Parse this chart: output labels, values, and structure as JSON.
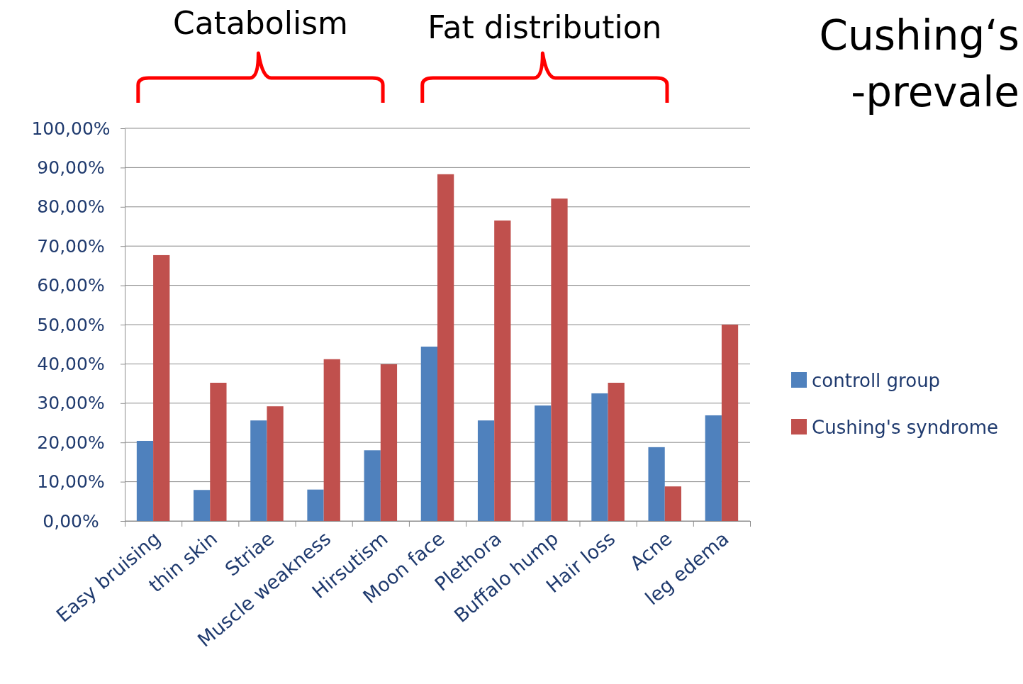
{
  "chart_data": {
    "type": "bar",
    "title": "Cushing‘s",
    "subtitle": "-prevale",
    "annotations": [
      "Catabolism",
      "Fat distribution"
    ],
    "categories": [
      "Easy bruising",
      "thin skin",
      "Striae",
      "Muscle weakness",
      "Hirsutism",
      "Moon face",
      "Plethora",
      "Buffalo hump",
      "Hair loss",
      "Acne",
      "leg edema"
    ],
    "series": [
      {
        "name": "controll group",
        "color": "#4f81bd",
        "values": [
          20.4,
          7.9,
          25.6,
          8,
          18,
          44.4,
          25.6,
          29.4,
          32.5,
          18.8,
          26.9
        ]
      },
      {
        "name": "Cushing's syndrome",
        "color": "#c0504d",
        "values": [
          67.7,
          35.2,
          29.2,
          41.2,
          39.9,
          88.3,
          76.5,
          82.1,
          35.2,
          8.8,
          50
        ]
      }
    ],
    "ylim": [
      0,
      100
    ],
    "yticks": [
      {
        "value": 0,
        "label": "0,00%"
      },
      {
        "value": 10,
        "label": "10,00%"
      },
      {
        "value": 20,
        "label": "20,00%"
      },
      {
        "value": 30,
        "label": "30,00%"
      },
      {
        "value": 40,
        "label": "40,00%"
      },
      {
        "value": 50,
        "label": "50,00%"
      },
      {
        "value": 60,
        "label": "60,00%"
      },
      {
        "value": 70,
        "label": "70,00%"
      },
      {
        "value": 80,
        "label": "80,00%"
      },
      {
        "value": 90,
        "label": "90,00%"
      },
      {
        "value": 100,
        "label": "100,00%"
      }
    ],
    "grid": "y",
    "legend": "right"
  }
}
